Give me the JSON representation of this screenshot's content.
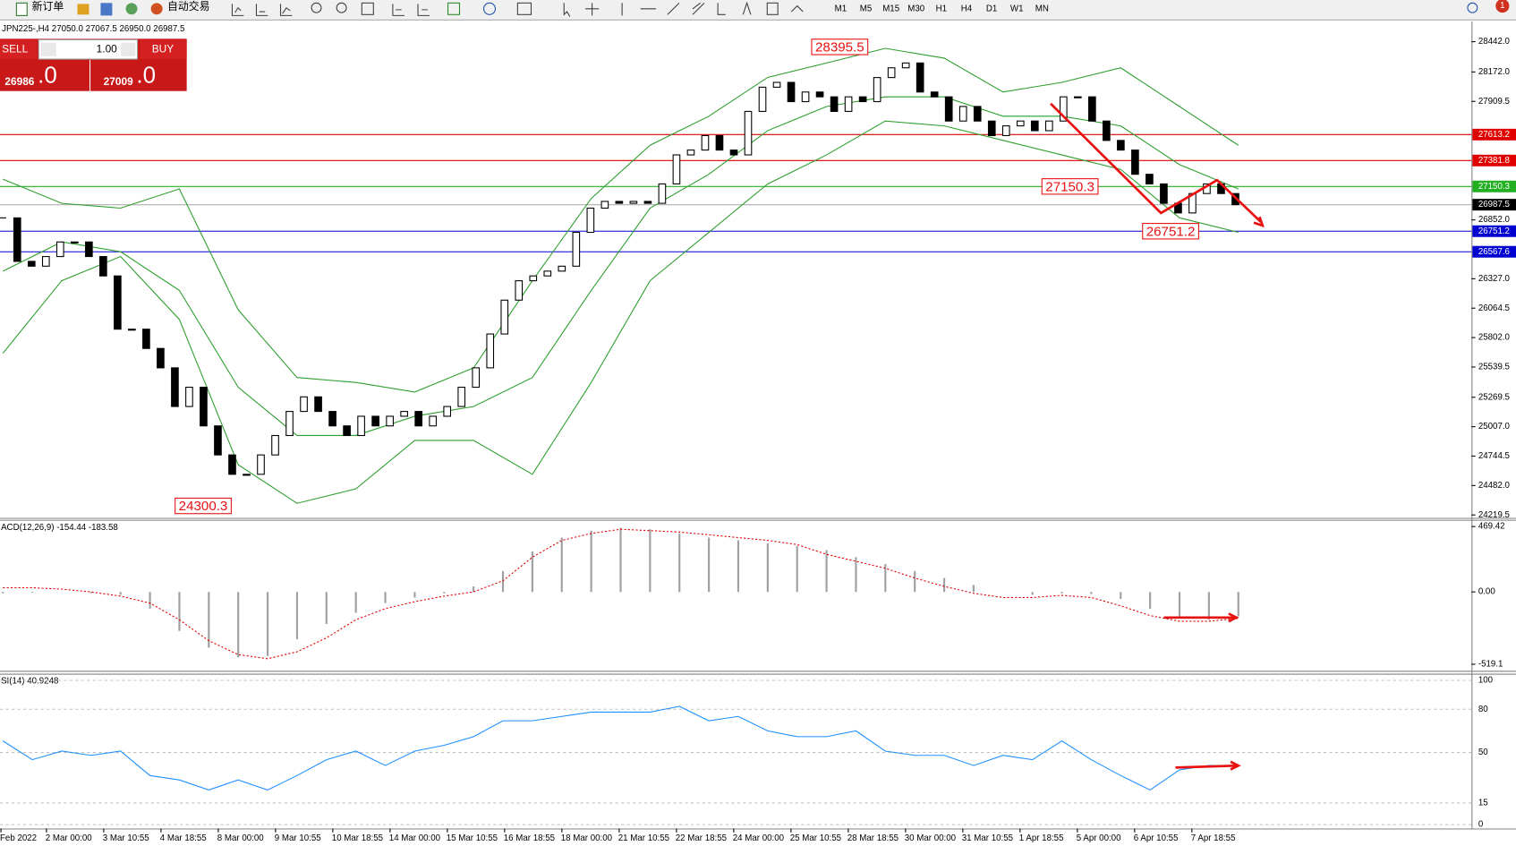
{
  "toolbar": {
    "buttons": [
      "新订单",
      "自动交易"
    ],
    "timeframes": [
      "M1",
      "M5",
      "M15",
      "M30",
      "H1",
      "H4",
      "D1",
      "W1",
      "MN"
    ],
    "notifications": "1"
  },
  "trade_panel": {
    "sell": "SELL",
    "buy": "BUY",
    "volume": "1.00",
    "sell_price": "26986",
    "sell_price_big": ".0",
    "buy_price": "27009",
    "buy_price_big": ".0"
  },
  "chart": {
    "type": "candlestick",
    "symbol_info": "JPN225-,H4  27050.0 27067.5 26950.0 26987.5",
    "ylim": [
      24193.6,
      28623.3
    ],
    "yticks": [
      {
        "value": 28442,
        "label": "28442.0"
      },
      {
        "value": 28172,
        "label": "28172.0"
      },
      27909.5,
      {
        "value": 26852,
        "label": "26852.0"
      },
      {
        "value": 26327,
        "label": "26327.0"
      },
      26064.5,
      {
        "value": 25802,
        "label": "25802.0"
      },
      25539.5,
      25269.5,
      {
        "value": 25007,
        "label": "25007.0"
      },
      24744.5,
      {
        "value": 24482,
        "label": "24482.0"
      },
      24219.5
    ],
    "time_labels": [
      "Feb 2022",
      "2 Mar 00:00",
      "3 Mar 10:55",
      "4 Mar 18:55",
      "8 Mar 00:00",
      "9 Mar 10:55",
      "10 Mar 18:55",
      "14 Mar 00:00",
      "15 Mar 10:55",
      "16 Mar 18:55",
      "18 Mar 00:00",
      "21 Mar 10:55",
      "22 Mar 18:55",
      "24 Mar 00:00",
      "25 Mar 10:55",
      "28 Mar 18:55",
      "30 Mar 00:00",
      "31 Mar 10:55",
      "1 Apr 18:55",
      "5 Apr 00:00",
      "6 Apr 10:55",
      "7 Apr 18:55"
    ],
    "closes": [
      26870,
      26482,
      26439,
      26525,
      26655,
      26655,
      26525,
      26352,
      25877,
      25877,
      25705,
      25532,
      25187,
      25359,
      25014,
      24755,
      24582,
      24582,
      24755,
      24928,
      25143,
      25273,
      25143,
      25014,
      24928,
      25100,
      25014,
      25100,
      25143,
      25014,
      25100,
      25187,
      25359,
      25532,
      25834,
      26136,
      26309,
      26352,
      26395,
      26439,
      26741,
      26957,
      27017,
      27000,
      27017,
      27000,
      27173,
      27432,
      27475,
      27604,
      27475,
      27432,
      27820,
      28036,
      28079,
      27907,
      27993,
      27950,
      27820,
      27950,
      27907,
      28122,
      28209,
      28252,
      27993,
      27950,
      27734,
      27864,
      27734,
      27604,
      27691,
      27734,
      27648,
      27734,
      27950,
      27950,
      27734,
      27561,
      27475,
      27259,
      27173,
      27000,
      26914,
      27087,
      27173,
      27087,
      26987.5
    ],
    "bollinger": {
      "color": "#2e9e2e",
      "upper": [
        27216,
        27000,
        26957,
        27129,
        26050,
        25446,
        25402,
        25316,
        25532,
        26309,
        27043,
        27518,
        27777,
        28123,
        28252,
        28382,
        28295,
        27993,
        28079,
        28209,
        27863,
        27518
      ],
      "middle": [
        26395,
        26655,
        26568,
        26223,
        25359,
        24928,
        24928,
        25100,
        25187,
        25446,
        26223,
        26957,
        27259,
        27648,
        27863,
        27950,
        27950,
        27777,
        27777,
        27691,
        27345,
        27129
      ],
      "lower": [
        25662,
        26309,
        26525,
        25964,
        24668,
        24323,
        24453,
        24884,
        24884,
        24582,
        25402,
        26309,
        26741,
        27173,
        27432,
        27734,
        27691,
        27561,
        27432,
        27302,
        26870,
        26741
      ]
    },
    "levels": [
      {
        "value": 27613.2,
        "color": "#e00000"
      },
      {
        "value": 27381.8,
        "color": "#e00000"
      },
      {
        "value": 27150.3,
        "color": "#22b022"
      },
      {
        "value": 26751.2,
        "color": "#0000d0"
      },
      {
        "value": 26567.6,
        "color": "#0000d0"
      }
    ],
    "current": 26987.5,
    "annotations": [
      28395.5,
      24300.3,
      27150.3,
      26751.2
    ]
  },
  "macd": {
    "label": "ACD(12,26,9) -154.44 -183.58",
    "ylim": [
      -566,
      511
    ],
    "yticks": [
      469.42,
      {
        "value": 0,
        "label": "0.00"
      },
      -519.1
    ],
    "histogram_color": "#a0a0a0",
    "signal_color": "#e00000",
    "histogram": [
      -10,
      -5,
      0,
      -10,
      -20,
      -120,
      -280,
      -400,
      -470,
      -460,
      -340,
      -230,
      -150,
      -80,
      -40,
      -10,
      40,
      150,
      290,
      390,
      440,
      460,
      450,
      420,
      390,
      370,
      350,
      330,
      300,
      250,
      200,
      150,
      100,
      50,
      0,
      -20,
      -10,
      -15,
      -50,
      -120,
      -180,
      -200,
      -175
    ],
    "signal": [
      30,
      30,
      20,
      0,
      -30,
      -80,
      -200,
      -350,
      -450,
      -480,
      -430,
      -330,
      -200,
      -120,
      -70,
      -30,
      0,
      80,
      250,
      370,
      420,
      450,
      440,
      430,
      410,
      390,
      370,
      340,
      270,
      220,
      170,
      100,
      40,
      -10,
      -40,
      -40,
      -25,
      -40,
      -100,
      -170,
      -210,
      -210,
      -190
    ]
  },
  "rsi": {
    "label": "SI(14) 40.9248",
    "ylim": [
      -2.7,
      104
    ],
    "yticks": [
      100,
      80,
      50,
      15,
      0
    ],
    "color": "#1e90ff",
    "values": [
      58,
      45,
      51,
      48,
      51,
      34,
      31,
      24,
      31,
      24,
      34,
      45,
      51,
      41,
      51,
      55,
      61,
      72,
      72,
      75,
      78,
      78,
      78,
      82,
      72,
      75,
      65,
      61,
      61,
      65,
      51,
      48,
      48,
      41,
      48,
      45,
      58,
      45,
      34,
      24,
      38,
      41,
      40.9248
    ]
  }
}
